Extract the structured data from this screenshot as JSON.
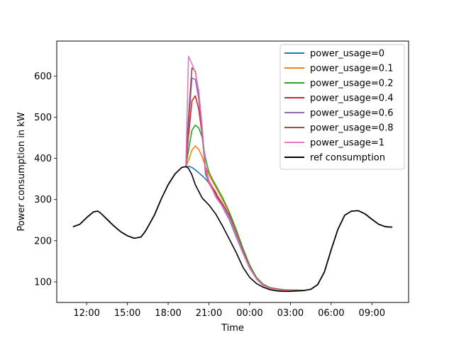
{
  "chart_data": {
    "type": "line",
    "title": "",
    "xlabel": "Time",
    "ylabel": "Power consumption in kW",
    "x_unit": "hours (11:00 day 1 = 11, 10:30 day 2 = 34.5)",
    "xlim": [
      9.8,
      35.7
    ],
    "ylim": [
      50,
      685
    ],
    "x_ticks": [
      {
        "value": 12,
        "label": "12:00"
      },
      {
        "value": 15,
        "label": "15:00"
      },
      {
        "value": 18,
        "label": "18:00"
      },
      {
        "value": 21,
        "label": "21:00"
      },
      {
        "value": 24,
        "label": "00:00"
      },
      {
        "value": 27,
        "label": "03:00"
      },
      {
        "value": 30,
        "label": "06:00"
      },
      {
        "value": 33,
        "label": "09:00"
      }
    ],
    "y_ticks": [
      {
        "value": 100,
        "label": "100"
      },
      {
        "value": 200,
        "label": "200"
      },
      {
        "value": 300,
        "label": "300"
      },
      {
        "value": 400,
        "label": "400"
      },
      {
        "value": 500,
        "label": "500"
      },
      {
        "value": 600,
        "label": "600"
      }
    ],
    "legend_position": "top-right",
    "reference_x": [
      11.0,
      11.5,
      12.0,
      12.5,
      12.8,
      13.0,
      13.5,
      14.0,
      14.5,
      15.0,
      15.5,
      16.0,
      16.3,
      16.5,
      17.0,
      17.5,
      18.0,
      18.5,
      19.0,
      19.3,
      19.5,
      19.75,
      20.0,
      20.5,
      21.0,
      21.5,
      22.0,
      22.5,
      23.0,
      23.5,
      24.0,
      24.5,
      25.0,
      25.5,
      26.0,
      26.5,
      27.0,
      27.5,
      28.0,
      28.5,
      29.0,
      29.5,
      30.0,
      30.5,
      31.0,
      31.5,
      32.0,
      32.5,
      33.0,
      33.5,
      34.0,
      34.5
    ],
    "reference_y": [
      234,
      240,
      256,
      270,
      272,
      268,
      252,
      236,
      222,
      212,
      206,
      209,
      222,
      233,
      263,
      302,
      336,
      362,
      378,
      380,
      376,
      360,
      336,
      304,
      287,
      265,
      236,
      204,
      172,
      136,
      111,
      96,
      87,
      81,
      78,
      77,
      77,
      78,
      79,
      82,
      93,
      124,
      178,
      228,
      262,
      272,
      273,
      265,
      252,
      240,
      234,
      233
    ],
    "series": [
      {
        "name": "power_usage=0",
        "color": "#1f77b4",
        "peak": [
          381,
          378,
          372,
          365,
          358,
          350,
          340,
          330
        ]
      },
      {
        "name": "power_usage=0.1",
        "color": "#ff7f0e",
        "peak": [
          395,
          420,
          430,
          422,
          404,
          380,
          362,
          345
        ]
      },
      {
        "name": "power_usage=0.2",
        "color": "#2ca02c",
        "peak": [
          420,
          468,
          481,
          474,
          452,
          400,
          367,
          350
        ]
      },
      {
        "name": "power_usage=0.4",
        "color": "#d62728",
        "peak": [
          455,
          540,
          552,
          520,
          458,
          380,
          345,
          330
        ]
      },
      {
        "name": "power_usage=0.6",
        "color": "#9467bd",
        "peak": [
          480,
          595,
          592,
          545,
          462,
          362,
          340,
          325
        ]
      },
      {
        "name": "power_usage=0.8",
        "color": "#8c564b",
        "peak": [
          500,
          620,
          612,
          560,
          468,
          368,
          340,
          325
        ]
      },
      {
        "name": "power_usage=1",
        "color": "#e377c2",
        "peak": [
          648,
          630,
          608,
          565,
          480,
          375,
          342,
          325
        ]
      },
      {
        "name": "ref consumption",
        "color": "#000000"
      }
    ],
    "peak_x": [
      19.5,
      19.75,
      20.0,
      20.25,
      20.5,
      20.75,
      21.0,
      21.25
    ],
    "peak_rejoin": [
      [
        [
          21.5,
          318
        ],
        [
          22.0,
          282
        ],
        [
          22.5,
          252
        ],
        [
          23.0,
          210
        ],
        [
          23.5,
          170
        ],
        [
          24.0,
          133
        ],
        [
          24.5,
          108
        ],
        [
          25.0,
          92
        ],
        [
          25.5,
          85
        ],
        [
          26.0,
          82
        ],
        [
          26.5,
          80
        ],
        [
          27.0,
          79
        ],
        [
          27.5,
          79
        ]
      ],
      [
        [
          21.5,
          330
        ],
        [
          22.0,
          300
        ],
        [
          22.5,
          268
        ],
        [
          23.0,
          225
        ],
        [
          23.5,
          180
        ],
        [
          24.0,
          140
        ],
        [
          24.5,
          110
        ],
        [
          25.0,
          94
        ],
        [
          25.5,
          86
        ],
        [
          26.0,
          83
        ],
        [
          26.5,
          81
        ],
        [
          27.0,
          80
        ],
        [
          27.5,
          80
        ]
      ],
      [
        [
          21.5,
          335
        ],
        [
          22.0,
          305
        ],
        [
          22.5,
          270
        ],
        [
          23.0,
          228
        ],
        [
          23.5,
          182
        ],
        [
          24.0,
          141
        ],
        [
          24.5,
          111
        ],
        [
          25.0,
          94
        ],
        [
          25.5,
          86
        ],
        [
          26.0,
          83
        ],
        [
          26.5,
          81
        ],
        [
          27.0,
          80
        ],
        [
          27.5,
          80
        ]
      ],
      [
        [
          21.5,
          315
        ],
        [
          22.0,
          290
        ],
        [
          22.5,
          262
        ],
        [
          23.0,
          218
        ],
        [
          23.5,
          175
        ],
        [
          24.0,
          136
        ],
        [
          24.5,
          108
        ],
        [
          25.0,
          92
        ],
        [
          25.5,
          85
        ],
        [
          26.0,
          82
        ],
        [
          26.5,
          80
        ],
        [
          27.0,
          79
        ],
        [
          27.5,
          79
        ]
      ],
      [
        [
          21.5,
          310
        ],
        [
          22.0,
          285
        ],
        [
          22.5,
          258
        ],
        [
          23.0,
          215
        ],
        [
          23.5,
          172
        ],
        [
          24.0,
          134
        ],
        [
          24.5,
          107
        ],
        [
          25.0,
          91
        ],
        [
          25.5,
          84
        ],
        [
          26.0,
          81
        ],
        [
          26.5,
          79
        ],
        [
          27.0,
          78
        ],
        [
          27.5,
          78
        ]
      ],
      [
        [
          21.5,
          308
        ],
        [
          22.0,
          284
        ],
        [
          22.5,
          256
        ],
        [
          23.0,
          214
        ],
        [
          23.5,
          171
        ],
        [
          24.0,
          134
        ],
        [
          24.5,
          107
        ],
        [
          25.0,
          91
        ],
        [
          25.5,
          84
        ],
        [
          26.0,
          81
        ],
        [
          26.5,
          79
        ],
        [
          27.0,
          78
        ],
        [
          27.5,
          78
        ]
      ],
      [
        [
          21.5,
          306
        ],
        [
          22.0,
          283
        ],
        [
          22.5,
          256
        ],
        [
          23.0,
          214
        ],
        [
          23.5,
          171
        ],
        [
          24.0,
          134
        ],
        [
          24.5,
          107
        ],
        [
          25.0,
          91
        ],
        [
          25.5,
          84
        ],
        [
          26.0,
          81
        ],
        [
          26.5,
          79
        ],
        [
          27.0,
          78
        ],
        [
          27.5,
          78
        ]
      ]
    ]
  }
}
